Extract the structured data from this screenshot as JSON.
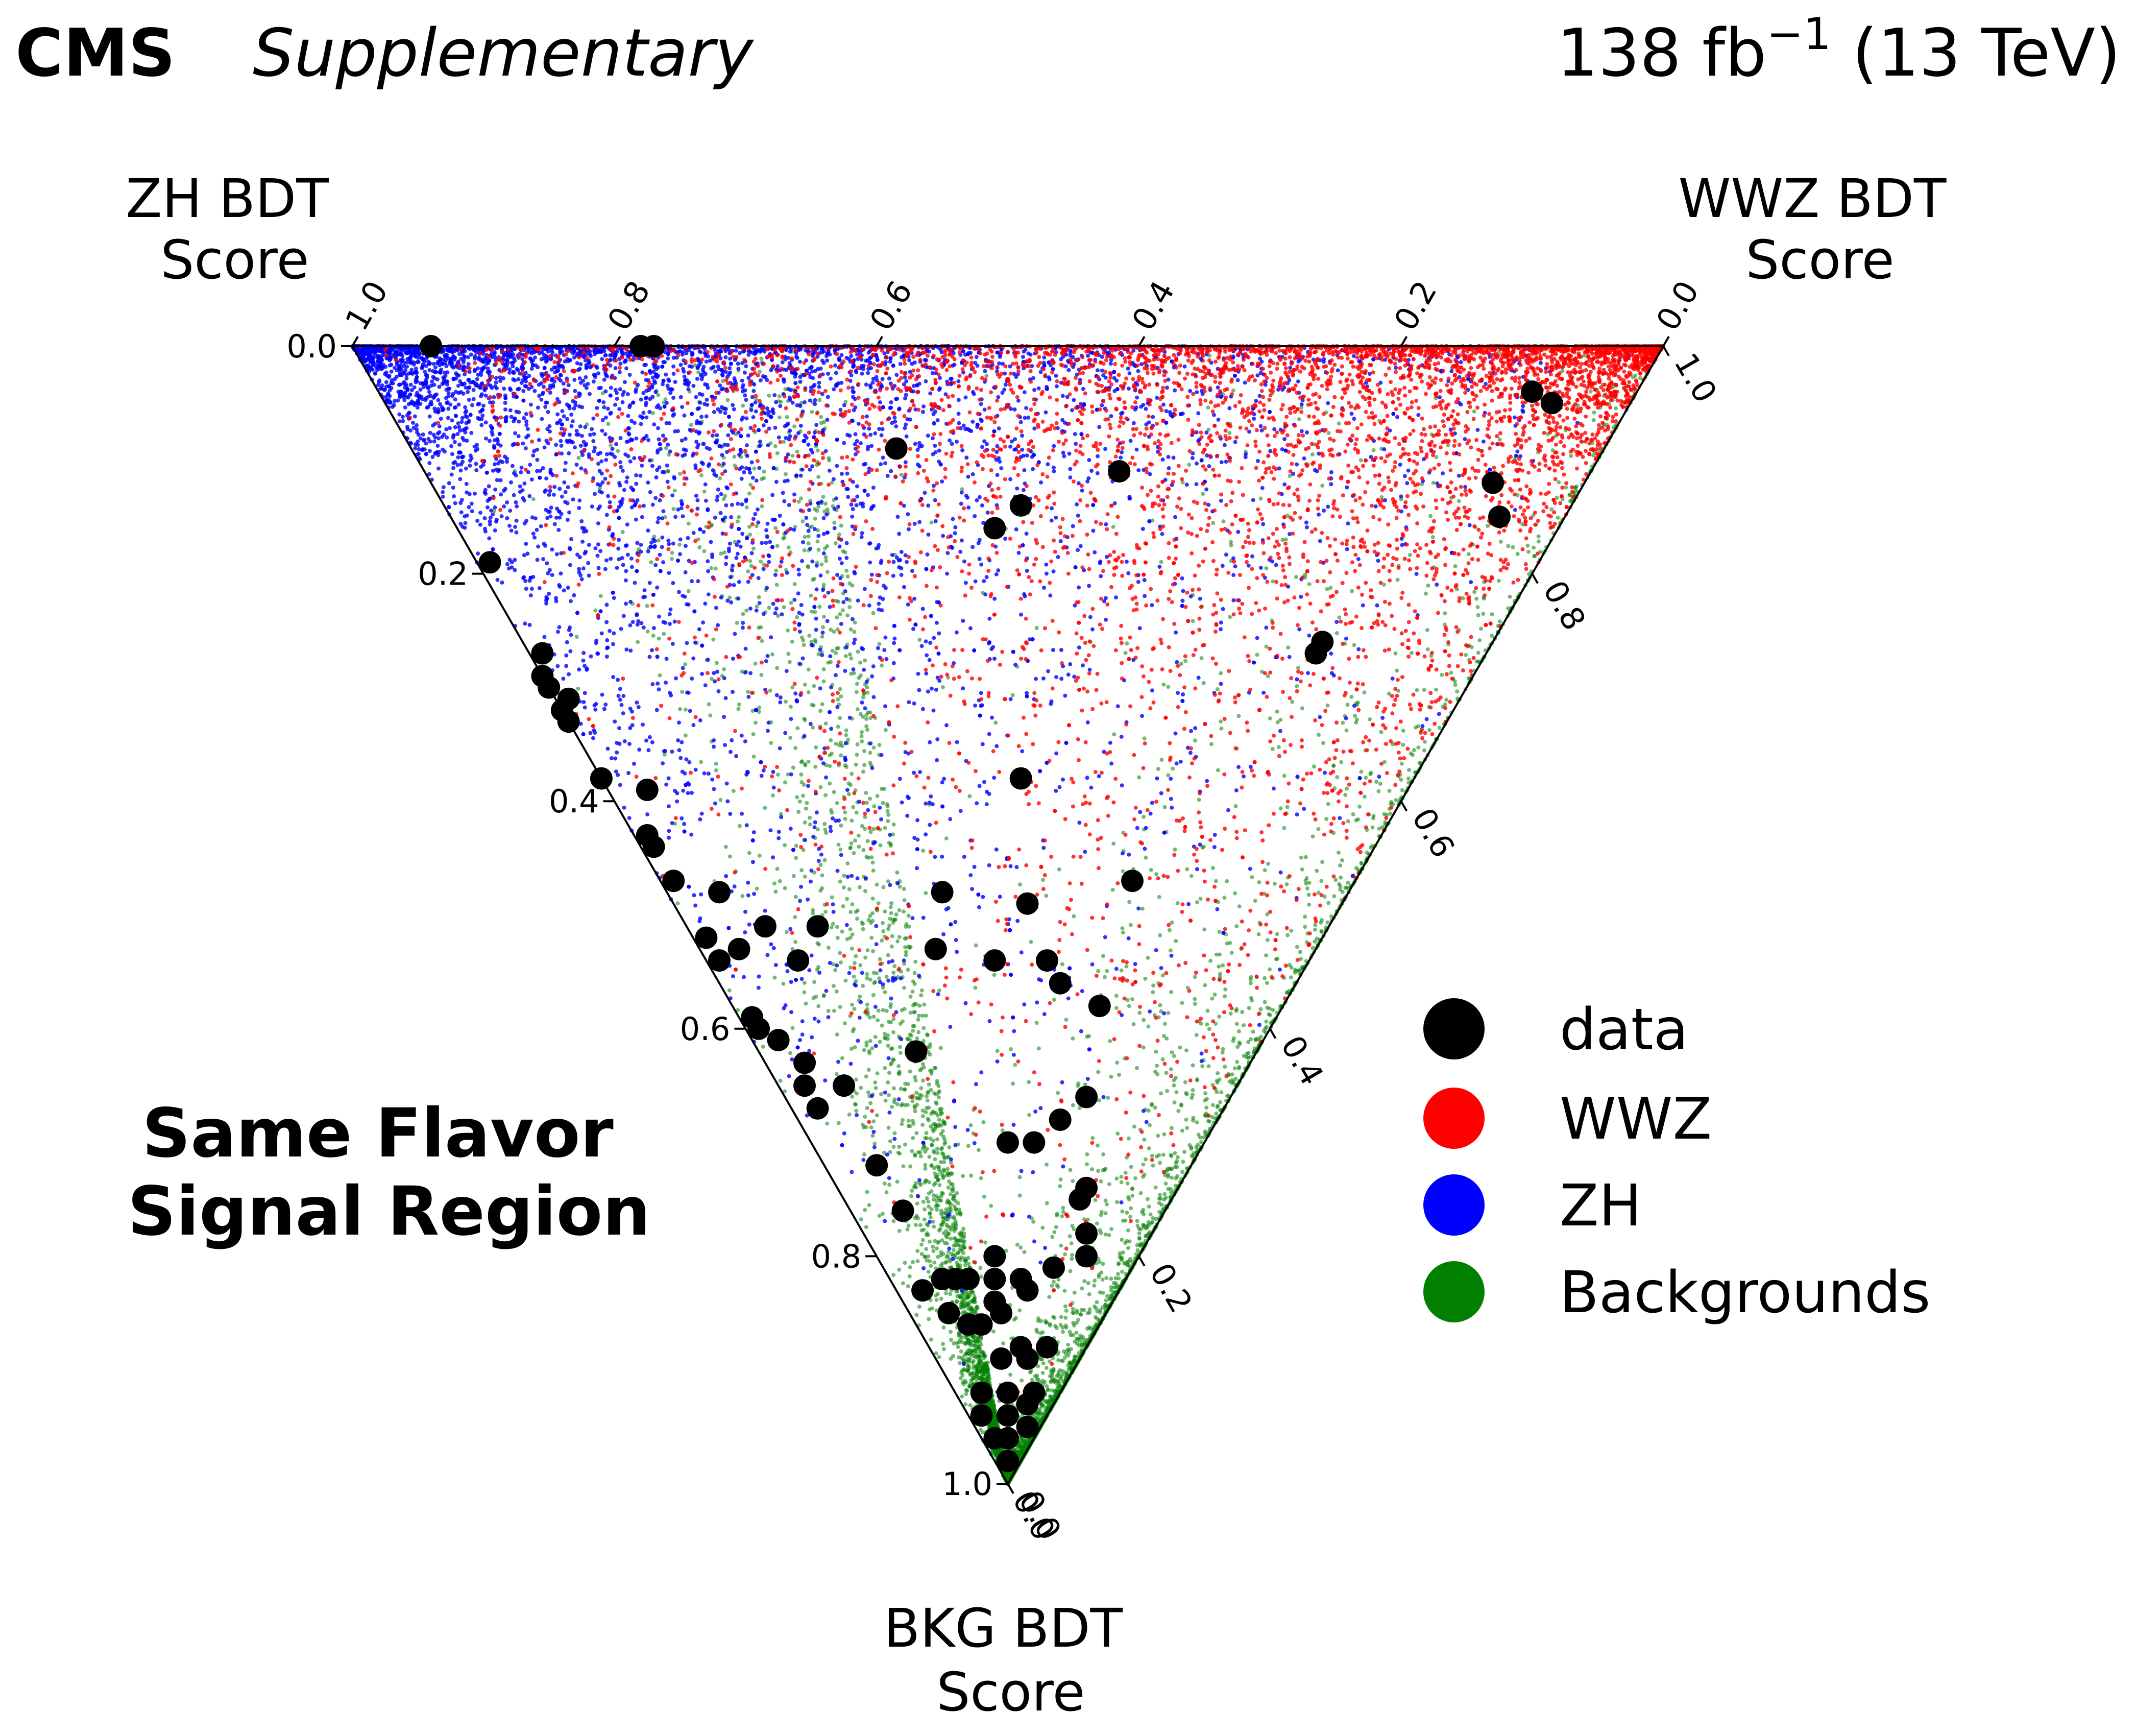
{
  "header": {
    "experiment": "CMS",
    "status": "Supplementary",
    "luminosity": "138 fb",
    "luminosity_exponent": "−1",
    "energy": " (13 TeV)"
  },
  "region_label": {
    "line1": "Same Flavor",
    "line2": "Signal Region"
  },
  "colors": {
    "data": "#000000",
    "wwz": "#ff0000",
    "zh": "#0000ff",
    "backgrounds": "#007f00"
  },
  "chart_data": {
    "type": "scatter",
    "subtype": "ternary",
    "corners": [
      "ZH",
      "WWZ",
      "BKG"
    ],
    "axes": {
      "zh": {
        "label_line1": "ZH BDT",
        "label_line2": "Score",
        "ticks": [
          "0.0",
          "0.2",
          "0.4",
          "0.6",
          "0.8",
          "1.0"
        ]
      },
      "wwz": {
        "label_line1": "WWZ BDT",
        "label_line2": "Score",
        "ticks": [
          "1.0",
          "0.8",
          "0.6",
          "0.4",
          "0.2",
          "0.0"
        ]
      },
      "bkg": {
        "label_line1": "BKG BDT",
        "label_line2": "Score",
        "ticks": [
          "0.0",
          "0.2",
          "0.4",
          "0.6",
          "0.8",
          "1.0"
        ]
      }
    },
    "range": [
      0,
      1
    ],
    "grid": false,
    "legend_position": "right",
    "series": [
      {
        "name": "data",
        "color": "#000000"
      },
      {
        "name": "WWZ",
        "color": "#ff0000"
      },
      {
        "name": "ZH",
        "color": "#0000ff"
      },
      {
        "name": "Backgrounds",
        "color": "#007f00"
      }
    ],
    "mc_density_note": "",
    "data_points": [
      [
        0.94,
        0.06,
        0.0
      ],
      [
        0.78,
        0.22,
        0.0
      ],
      [
        0.77,
        0.23,
        0.0
      ],
      [
        0.54,
        0.37,
        0.09
      ],
      [
        0.36,
        0.53,
        0.11
      ],
      [
        0.42,
        0.44,
        0.14
      ],
      [
        0.43,
        0.41,
        0.16
      ],
      [
        0.08,
        0.88,
        0.04
      ],
      [
        0.06,
        0.89,
        0.05
      ],
      [
        0.07,
        0.81,
        0.12
      ],
      [
        0.05,
        0.8,
        0.15
      ],
      [
        0.13,
        0.61,
        0.26
      ],
      [
        0.13,
        0.6,
        0.27
      ],
      [
        0.8,
        0.01,
        0.19
      ],
      [
        0.72,
        0.01,
        0.27
      ],
      [
        0.7,
        0.0,
        0.3
      ],
      [
        0.71,
        0.0,
        0.29
      ],
      [
        0.68,
        0.0,
        0.32
      ],
      [
        0.68,
        0.01,
        0.31
      ],
      [
        0.67,
        0.0,
        0.33
      ],
      [
        0.7,
        0.0,
        0.3
      ],
      [
        0.62,
        0.0,
        0.38
      ],
      [
        0.58,
        0.03,
        0.39
      ],
      [
        0.55,
        0.01,
        0.44
      ],
      [
        0.56,
        0.01,
        0.43
      ],
      [
        0.52,
        0.01,
        0.47
      ],
      [
        0.48,
        0.04,
        0.48
      ],
      [
        0.47,
        0.01,
        0.52
      ],
      [
        0.44,
        0.03,
        0.53
      ],
      [
        0.45,
        0.01,
        0.54
      ],
      [
        0.43,
        0.06,
        0.51
      ],
      [
        0.39,
        0.1,
        0.51
      ],
      [
        0.39,
        0.07,
        0.54
      ],
      [
        0.4,
        0.01,
        0.59
      ],
      [
        0.39,
        0.01,
        0.6
      ],
      [
        0.37,
        0.02,
        0.61
      ],
      [
        0.34,
        0.03,
        0.63
      ],
      [
        0.33,
        0.02,
        0.65
      ],
      [
        0.31,
        0.02,
        0.67
      ],
      [
        0.3,
        0.05,
        0.65
      ],
      [
        0.26,
        0.12,
        0.62
      ],
      [
        0.24,
        0.04,
        0.72
      ],
      [
        0.2,
        0.04,
        0.76
      ],
      [
        0.15,
        0.02,
        0.83
      ],
      [
        0.14,
        0.04,
        0.82
      ],
      [
        0.12,
        0.03,
        0.85
      ],
      [
        0.13,
        0.05,
        0.82
      ],
      [
        0.1,
        0.08,
        0.82
      ],
      [
        0.11,
        0.09,
        0.8
      ],
      [
        0.12,
        0.2,
        0.68
      ],
      [
        0.11,
        0.23,
        0.66
      ],
      [
        0.31,
        0.21,
        0.48
      ],
      [
        0.24,
        0.22,
        0.54
      ],
      [
        0.2,
        0.26,
        0.54
      ],
      [
        0.29,
        0.18,
        0.53
      ],
      [
        0.24,
        0.27,
        0.49
      ],
      [
        0.3,
        0.32,
        0.38
      ],
      [
        0.17,
        0.36,
        0.47
      ],
      [
        0.18,
        0.26,
        0.56
      ],
      [
        0.14,
        0.28,
        0.58
      ],
      [
        0.13,
        0.17,
        0.7
      ],
      [
        0.15,
        0.15,
        0.7
      ],
      [
        0.07,
        0.18,
        0.75
      ],
      [
        0.07,
        0.19,
        0.74
      ],
      [
        0.05,
        0.17,
        0.78
      ],
      [
        0.04,
        0.16,
        0.8
      ],
      [
        0.06,
        0.13,
        0.81
      ],
      [
        0.07,
        0.1,
        0.83
      ],
      [
        0.08,
        0.1,
        0.82
      ],
      [
        0.09,
        0.07,
        0.84
      ],
      [
        0.08,
        0.07,
        0.85
      ],
      [
        0.05,
        0.07,
        0.88
      ],
      [
        0.06,
        0.05,
        0.89
      ],
      [
        0.09,
        0.05,
        0.86
      ],
      [
        0.12,
        0.06,
        0.82
      ],
      [
        0.02,
        0.06,
        0.92
      ],
      [
        0.04,
        0.04,
        0.92
      ],
      [
        0.03,
        0.03,
        0.94
      ],
      [
        0.06,
        0.02,
        0.92
      ],
      [
        0.05,
        0.01,
        0.94
      ],
      [
        0.03,
        0.01,
        0.96
      ],
      [
        0.02,
        0.02,
        0.96
      ],
      [
        0.01,
        0.01,
        0.98
      ],
      [
        0.04,
        0.07,
        0.89
      ],
      [
        0.03,
        0.09,
        0.88
      ],
      [
        0.1,
        0.04,
        0.86
      ],
      [
        0.01,
        0.04,
        0.95
      ],
      [
        0.02,
        0.05,
        0.93
      ]
    ]
  }
}
